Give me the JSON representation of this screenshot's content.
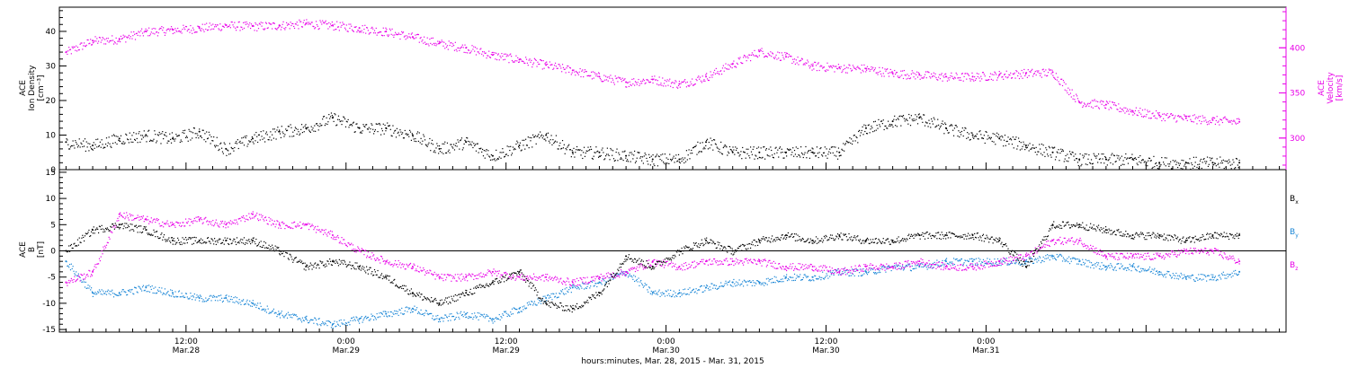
{
  "colors": {
    "black": "#000000",
    "magenta": "#e800e8",
    "blue": "#1a86d6"
  },
  "chart_data": [
    {
      "type": "scatter",
      "panel": "top",
      "ylabel_left": [
        "ACE",
        "Ion Density",
        "[cm⁻³]"
      ],
      "ylabel_right": [
        "ACE",
        "Velocity",
        "[km/s]"
      ],
      "ylim_left": [
        0,
        47
      ],
      "yticks_left": [
        0,
        10,
        20,
        30,
        40
      ],
      "ylim_right": [
        265,
        445
      ],
      "yticks_right": [
        300,
        350,
        400
      ],
      "series": [
        {
          "key": "density",
          "color": "magenta_none",
          "axis": "left",
          "style": "black",
          "x": [
            0,
            2,
            4,
            6,
            8,
            10,
            12,
            14,
            16,
            18,
            20,
            22,
            24,
            26,
            28,
            30,
            32,
            34,
            36,
            38,
            40,
            42,
            44,
            46,
            48,
            50,
            52,
            54,
            56,
            58,
            60,
            62,
            64,
            66,
            68,
            70,
            72,
            74,
            76,
            78,
            80,
            82,
            84,
            86,
            88
          ],
          "y": [
            8,
            7,
            9,
            10,
            9,
            11,
            6,
            9,
            11,
            12,
            15,
            12,
            12,
            10,
            6,
            8,
            4,
            7,
            10,
            5,
            5,
            4,
            3,
            3,
            8,
            5,
            5,
            5,
            5,
            5,
            12,
            14,
            15,
            12,
            10,
            9,
            7,
            5,
            3,
            3,
            3,
            2,
            2,
            2,
            2
          ]
        },
        {
          "key": "velocity",
          "axis": "right",
          "style": "magenta",
          "x": [
            0,
            2,
            4,
            6,
            8,
            10,
            12,
            14,
            16,
            18,
            20,
            22,
            24,
            26,
            28,
            30,
            32,
            34,
            36,
            38,
            40,
            42,
            44,
            46,
            48,
            50,
            52,
            54,
            56,
            58,
            60,
            62,
            64,
            66,
            68,
            70,
            72,
            74,
            76,
            78,
            80,
            82,
            84,
            86,
            88
          ],
          "y": [
            395,
            408,
            410,
            418,
            420,
            422,
            425,
            424,
            425,
            427,
            425,
            422,
            418,
            412,
            405,
            400,
            392,
            387,
            381,
            375,
            368,
            362,
            365,
            360,
            368,
            382,
            396,
            390,
            380,
            378,
            377,
            372,
            370,
            368,
            368,
            370,
            372,
            373,
            340,
            337,
            330,
            325,
            322,
            320,
            318
          ]
        }
      ]
    },
    {
      "type": "scatter",
      "panel": "bottom",
      "ylabel_left": [
        "ACE",
        "B",
        "[nT]"
      ],
      "ylim_left": [
        -15.5,
        15.5
      ],
      "yticks_left": [
        -15,
        -10,
        -5,
        0,
        5,
        10,
        15
      ],
      "series": [
        {
          "key": "bx",
          "name": "B",
          "sub": "x",
          "style": "black",
          "x": [
            0,
            2,
            4,
            6,
            8,
            10,
            12,
            14,
            16,
            18,
            20,
            22,
            24,
            26,
            28,
            30,
            32,
            34,
            36,
            38,
            40,
            42,
            44,
            46,
            48,
            50,
            52,
            54,
            56,
            58,
            60,
            62,
            64,
            66,
            68,
            70,
            72,
            74,
            76,
            78,
            80,
            82,
            84,
            86,
            88
          ],
          "y": [
            0,
            4,
            5,
            4,
            2,
            2,
            2,
            2,
            0,
            -3,
            -2,
            -3,
            -5,
            -8,
            -10,
            -8,
            -6,
            -4,
            -10,
            -11,
            -8,
            -1,
            -3,
            0,
            2,
            0,
            2,
            3,
            2,
            3,
            2,
            2,
            3,
            3,
            3,
            2,
            -3,
            5,
            5,
            4,
            3,
            3,
            2,
            3,
            3
          ]
        },
        {
          "key": "by",
          "name": "B",
          "sub": "y",
          "style": "blue",
          "x": [
            0,
            2,
            4,
            6,
            8,
            10,
            12,
            14,
            16,
            18,
            20,
            22,
            24,
            26,
            28,
            30,
            32,
            34,
            36,
            38,
            40,
            42,
            44,
            46,
            48,
            50,
            52,
            54,
            56,
            58,
            60,
            62,
            64,
            66,
            68,
            70,
            72,
            74,
            76,
            78,
            80,
            82,
            84,
            86,
            88
          ],
          "y": [
            -2,
            -8,
            -8,
            -7,
            -8,
            -9,
            -9,
            -10,
            -12,
            -13,
            -14,
            -13,
            -12,
            -11,
            -13,
            -12,
            -13,
            -11,
            -9,
            -7,
            -6,
            -4,
            -8,
            -8,
            -7,
            -6,
            -6,
            -5,
            -5,
            -4,
            -4,
            -3,
            -3,
            -2,
            -2,
            -2,
            -2,
            -1,
            -2,
            -3,
            -3,
            -4,
            -5,
            -5,
            -4
          ]
        },
        {
          "key": "bz",
          "name": "B",
          "sub": "z",
          "style": "magenta",
          "x": [
            0,
            2,
            4,
            6,
            8,
            10,
            12,
            14,
            16,
            18,
            20,
            22,
            24,
            26,
            28,
            30,
            32,
            34,
            36,
            38,
            40,
            42,
            44,
            46,
            48,
            50,
            52,
            54,
            56,
            58,
            60,
            62,
            64,
            66,
            68,
            70,
            72,
            74,
            76,
            78,
            80,
            82,
            84,
            86,
            88
          ],
          "y": [
            -6,
            -4,
            7,
            6,
            5,
            6,
            5,
            7,
            5,
            5,
            3,
            0,
            -2,
            -3,
            -5,
            -5,
            -4,
            -5,
            -5,
            -6,
            -5,
            -4,
            -2,
            -3,
            -2,
            -2,
            -2,
            -3,
            -3,
            -4,
            -3,
            -3,
            -2,
            -3,
            -3,
            -2,
            -1,
            2,
            2,
            -1,
            -1,
            -1,
            0,
            0,
            -2
          ]
        }
      ]
    }
  ],
  "time_axis": {
    "note_ticks": [
      "12:00",
      "0:00",
      "12:00",
      "0:00",
      "12:00",
      "0:00"
    ],
    "tick_times": [
      "12:00",
      "0:00",
      "12:00",
      "0:00",
      "12:00",
      "0:00"
    ],
    "tick_dates": [
      "Mar.28",
      "Mar.29",
      "Mar.29",
      "Mar.30",
      "Mar.30",
      "Mar.31"
    ],
    "tick_hours": [
      12,
      24,
      36,
      48,
      60,
      72
    ],
    "xlim_hours": [
      2.5,
      94.5
    ],
    "xlabel": "hours:minutes, Mar. 28, 2015 - Mar. 31, 2015"
  }
}
